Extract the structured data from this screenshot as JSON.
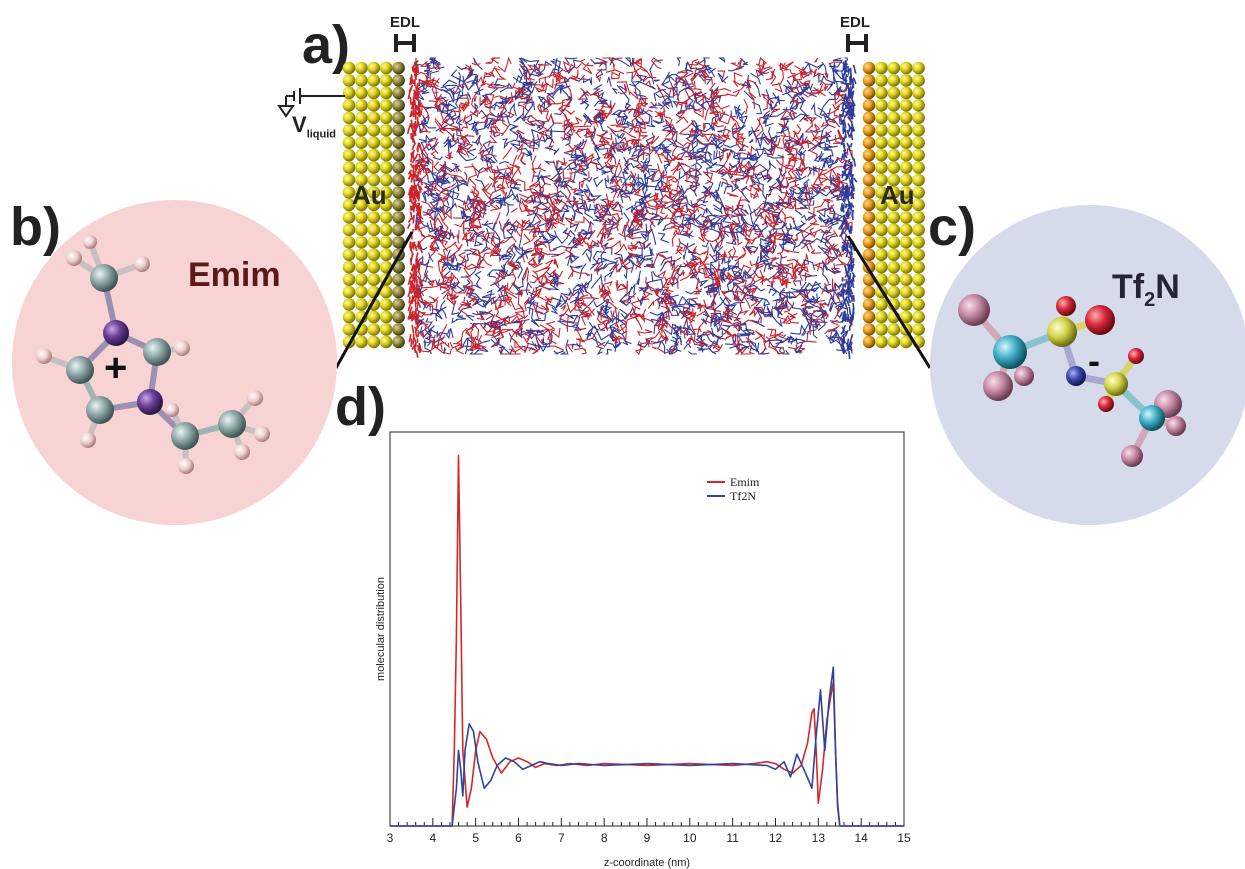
{
  "panels": {
    "a": "a)",
    "b": "b)",
    "c": "c)",
    "d": "d)"
  },
  "simulation_cell": {
    "edl_label_left": "EDL",
    "edl_label_right": "EDL",
    "electrode_left": "Au",
    "electrode_right": "Au",
    "voltage_label_main": "V",
    "voltage_label_sub": "liquid",
    "colors": {
      "cation": "#cc2229",
      "anion": "#2e3c9c",
      "gold": "#d8d21e",
      "gold_right": "#e0a21c"
    }
  },
  "cation": {
    "name": "Emim",
    "charge": "+",
    "circle_color": "#f7d3d3",
    "name_color": "#5a1a1a"
  },
  "anion": {
    "name_main": "Tf",
    "name_sub": "2",
    "name_tail": "N",
    "charge": "-",
    "circle_color": "#d6dbec",
    "name_color": "#25253a"
  },
  "chart_data": {
    "type": "line",
    "xlabel": "z-coordinate (nm)",
    "ylabel": "molecular distribution",
    "xlim": [
      3,
      15
    ],
    "ylim": [
      0,
      1
    ],
    "x_ticks": [
      "3",
      "4",
      "5",
      "6",
      "7",
      "8",
      "9",
      "10",
      "11",
      "12",
      "13",
      "14",
      "15"
    ],
    "legend_position": "top-right",
    "series": [
      {
        "name": "Emim",
        "color": "#d62728",
        "x": [
          3.0,
          4.45,
          4.5,
          4.55,
          4.6,
          4.65,
          4.7,
          4.8,
          4.9,
          5.0,
          5.1,
          5.25,
          5.4,
          5.6,
          5.8,
          6.0,
          6.2,
          6.4,
          6.6,
          6.9,
          7.2,
          7.6,
          8.0,
          9.0,
          10.0,
          11.0,
          11.5,
          11.8,
          12.0,
          12.2,
          12.4,
          12.6,
          12.75,
          12.85,
          12.9,
          12.95,
          13.0,
          13.1,
          13.2,
          13.3,
          13.35,
          13.4,
          13.45,
          13.5,
          15.0
        ],
        "y": [
          0.0,
          0.0,
          0.2,
          0.5,
          0.98,
          0.6,
          0.2,
          0.05,
          0.1,
          0.2,
          0.25,
          0.23,
          0.18,
          0.14,
          0.17,
          0.18,
          0.17,
          0.155,
          0.165,
          0.16,
          0.165,
          0.16,
          0.165,
          0.16,
          0.165,
          0.16,
          0.165,
          0.17,
          0.165,
          0.15,
          0.14,
          0.16,
          0.22,
          0.3,
          0.31,
          0.2,
          0.06,
          0.15,
          0.28,
          0.35,
          0.38,
          0.2,
          0.05,
          0.0,
          0.0
        ]
      },
      {
        "name": "Tf2N",
        "color": "#2c43a2",
        "x": [
          3.0,
          4.45,
          4.55,
          4.6,
          4.65,
          4.7,
          4.75,
          4.85,
          4.95,
          5.05,
          5.2,
          5.35,
          5.5,
          5.7,
          5.9,
          6.1,
          6.3,
          6.5,
          6.7,
          7.0,
          7.4,
          8.0,
          9.0,
          10.0,
          11.0,
          11.8,
          12.0,
          12.2,
          12.35,
          12.5,
          12.7,
          12.85,
          12.95,
          13.05,
          13.15,
          13.25,
          13.35,
          13.4,
          13.45,
          13.5,
          15.0
        ],
        "y": [
          0.0,
          0.0,
          0.1,
          0.2,
          0.15,
          0.08,
          0.2,
          0.27,
          0.25,
          0.17,
          0.1,
          0.12,
          0.16,
          0.18,
          0.17,
          0.15,
          0.16,
          0.17,
          0.165,
          0.16,
          0.165,
          0.16,
          0.165,
          0.16,
          0.165,
          0.16,
          0.15,
          0.17,
          0.13,
          0.19,
          0.14,
          0.1,
          0.24,
          0.36,
          0.2,
          0.33,
          0.42,
          0.2,
          0.06,
          0.0,
          0.0
        ]
      }
    ]
  }
}
